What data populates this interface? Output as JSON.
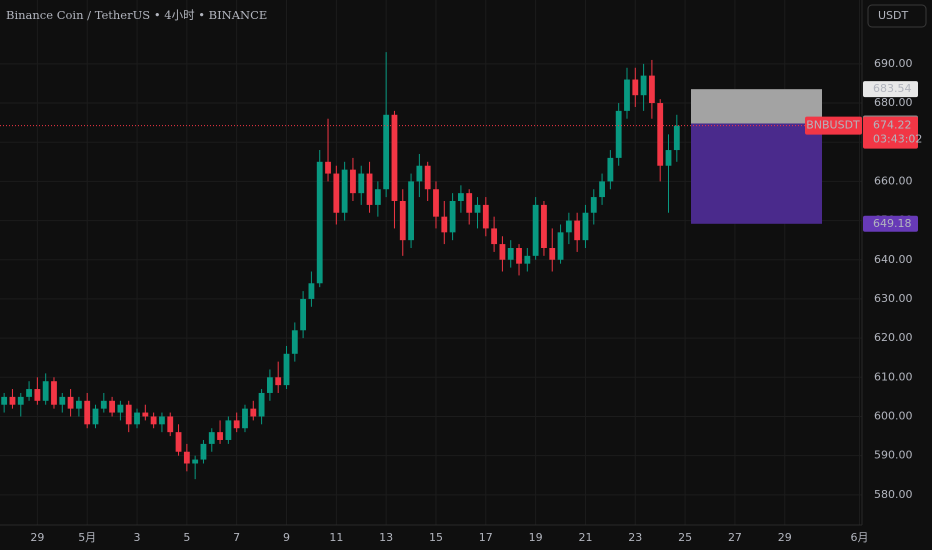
{
  "chart_data": {
    "type": "candlestick",
    "title": "Binance Coin / TetherUS  •  4小时  •  BINANCE",
    "currency": "USDT",
    "up_color": "#089981",
    "down_color": "#f23645",
    "grid": true,
    "candles": [
      [
        603,
        606,
        601,
        605
      ],
      [
        605,
        607,
        602,
        603
      ],
      [
        603,
        606,
        600,
        605
      ],
      [
        605,
        609,
        604,
        607
      ],
      [
        607,
        610,
        603,
        604
      ],
      [
        604,
        611,
        603,
        609
      ],
      [
        609,
        610,
        602,
        603
      ],
      [
        603,
        606,
        601,
        605
      ],
      [
        605,
        607,
        600,
        602
      ],
      [
        602,
        605,
        600,
        604
      ],
      [
        604,
        606,
        597,
        598
      ],
      [
        598,
        603,
        597,
        602
      ],
      [
        602,
        606,
        601,
        604
      ],
      [
        604,
        605,
        600,
        601
      ],
      [
        601,
        604,
        599,
        603
      ],
      [
        603,
        604,
        596,
        598
      ],
      [
        598,
        602,
        597,
        601
      ],
      [
        601,
        603,
        599,
        600
      ],
      [
        600,
        601,
        597,
        598
      ],
      [
        598,
        601,
        596,
        600
      ],
      [
        600,
        601,
        595,
        596
      ],
      [
        596,
        598,
        590,
        591
      ],
      [
        591,
        593,
        586,
        588
      ],
      [
        588,
        590,
        584,
        589
      ],
      [
        589,
        594,
        588,
        593
      ],
      [
        593,
        597,
        591,
        596
      ],
      [
        596,
        599,
        593,
        594
      ],
      [
        594,
        600,
        593,
        599
      ],
      [
        599,
        601,
        596,
        597
      ],
      [
        597,
        603,
        596,
        602
      ],
      [
        602,
        604,
        599,
        600
      ],
      [
        600,
        607,
        598,
        606
      ],
      [
        606,
        612,
        604,
        610
      ],
      [
        610,
        614,
        606,
        608
      ],
      [
        608,
        618,
        607,
        616
      ],
      [
        616,
        624,
        614,
        622
      ],
      [
        622,
        632,
        620,
        630
      ],
      [
        630,
        637,
        628,
        634
      ],
      [
        634,
        668,
        633,
        665
      ],
      [
        665,
        676,
        660,
        662
      ],
      [
        662,
        664,
        649,
        652
      ],
      [
        652,
        665,
        650,
        663
      ],
      [
        663,
        666,
        655,
        657
      ],
      [
        657,
        664,
        654,
        662
      ],
      [
        662,
        665,
        652,
        654
      ],
      [
        654,
        660,
        651,
        658
      ],
      [
        658,
        693,
        656,
        677
      ],
      [
        677,
        678,
        648,
        655
      ],
      [
        655,
        658,
        641,
        645
      ],
      [
        645,
        662,
        643,
        660
      ],
      [
        660,
        667,
        656,
        664
      ],
      [
        664,
        665,
        655,
        658
      ],
      [
        658,
        660,
        648,
        651
      ],
      [
        651,
        655,
        644,
        647
      ],
      [
        647,
        657,
        645,
        655
      ],
      [
        655,
        659,
        652,
        657
      ],
      [
        657,
        658,
        649,
        652
      ],
      [
        652,
        656,
        648,
        654
      ],
      [
        654,
        656,
        646,
        648
      ],
      [
        648,
        651,
        642,
        644
      ],
      [
        644,
        646,
        637,
        640
      ],
      [
        640,
        645,
        638,
        643
      ],
      [
        643,
        644,
        636,
        639
      ],
      [
        639,
        643,
        637,
        641
      ],
      [
        641,
        656,
        640,
        654
      ],
      [
        654,
        655,
        641,
        643
      ],
      [
        643,
        648,
        637,
        640
      ],
      [
        640,
        649,
        639,
        647
      ],
      [
        647,
        652,
        644,
        650
      ],
      [
        650,
        652,
        642,
        645
      ],
      [
        645,
        654,
        643,
        652
      ],
      [
        652,
        658,
        649,
        656
      ],
      [
        656,
        662,
        654,
        660
      ],
      [
        660,
        668,
        658,
        666
      ],
      [
        666,
        680,
        664,
        678
      ],
      [
        678,
        689,
        676,
        686
      ],
      [
        686,
        689,
        679,
        682
      ],
      [
        682,
        690,
        678,
        687
      ],
      [
        687,
        691,
        676,
        680
      ],
      [
        680,
        681,
        660,
        664
      ],
      [
        664,
        672,
        652,
        668
      ],
      [
        668,
        677,
        665,
        674.22
      ]
    ],
    "xlim": [
      -0.5,
      103.3
    ],
    "xticks": [
      {
        "value": 4,
        "label": "29"
      },
      {
        "value": 10,
        "label": "5月"
      },
      {
        "value": 16,
        "label": "3"
      },
      {
        "value": 22,
        "label": "5"
      },
      {
        "value": 28,
        "label": "7"
      },
      {
        "value": 34,
        "label": "9"
      },
      {
        "value": 40,
        "label": "11"
      },
      {
        "value": 46,
        "label": "13"
      },
      {
        "value": 52,
        "label": "15"
      },
      {
        "value": 58,
        "label": "17"
      },
      {
        "value": 64,
        "label": "19"
      },
      {
        "value": 70,
        "label": "21"
      },
      {
        "value": 76,
        "label": "23"
      },
      {
        "value": 82,
        "label": "25"
      },
      {
        "value": 88,
        "label": "27"
      },
      {
        "value": 94,
        "label": "29"
      },
      {
        "value": 103,
        "label": "6月"
      }
    ],
    "ylim": [
      572.3,
      706.3
    ],
    "yticks": [
      {
        "value": 580,
        "label": "580.00"
      },
      {
        "value": 590,
        "label": "590.00"
      },
      {
        "value": 600,
        "label": "600.00"
      },
      {
        "value": 610,
        "label": "610.00"
      },
      {
        "value": 620,
        "label": "620.00"
      },
      {
        "value": 630,
        "label": "630.00"
      },
      {
        "value": 640,
        "label": "640.00"
      },
      {
        "value": 650,
        "label": "650.00"
      },
      {
        "value": 660,
        "label": "660.00"
      },
      {
        "value": 670,
        "label": "670.00"
      },
      {
        "value": 680,
        "label": "680.00"
      },
      {
        "value": 690,
        "label": "690.00"
      }
    ],
    "position": {
      "target": 683.54,
      "entry": 674.78,
      "stop": 649.18
    },
    "symbol": "BNBUSDT",
    "last_price": 674.22,
    "countdown": "03:43:02"
  }
}
